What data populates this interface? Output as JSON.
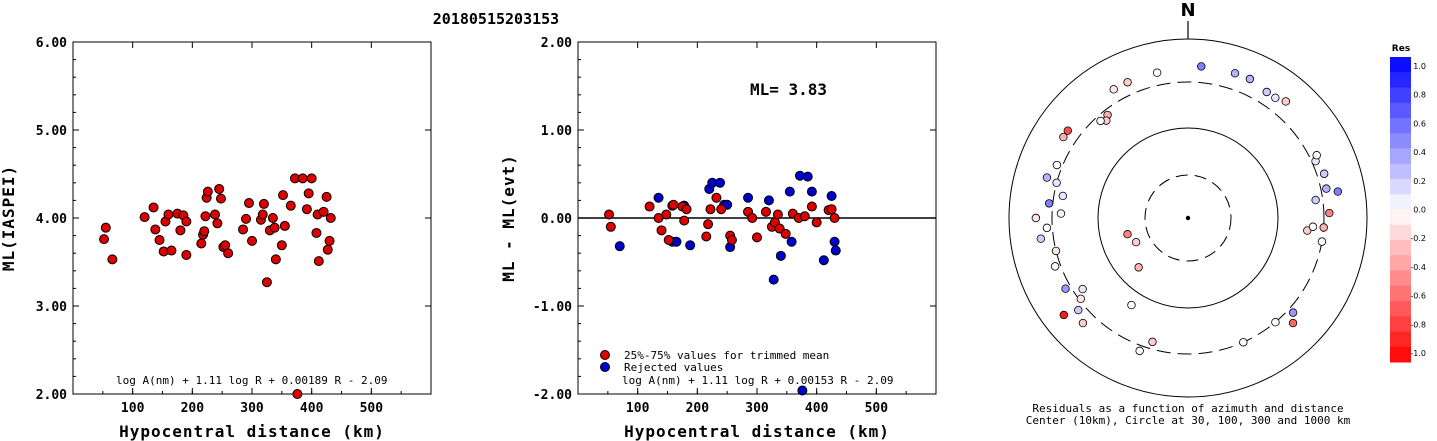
{
  "title": "20180515203153",
  "colors": {
    "trimmed": "#dd0000",
    "rejected": "#0000cc",
    "stroke": "#000000"
  },
  "chart_data": [
    {
      "type": "scatter",
      "name": "ml-iaspei-vs-distance",
      "xlabel": "Hypocentral distance (km)",
      "ylabel": "ML(IASPEI)",
      "xlim": [
        0,
        600
      ],
      "ylim": [
        2,
        6
      ],
      "xticks": [
        "100",
        "200",
        "300",
        "400",
        "500"
      ],
      "yticks": [
        "2.00",
        "3.00",
        "4.00",
        "5.00",
        "6.00"
      ],
      "formula": "log A(nm) + 1.11 log R + 0.00189 R - 2.09",
      "points": [
        [
          52,
          3.76
        ],
        [
          55,
          3.89
        ],
        [
          66,
          3.53
        ],
        [
          120,
          4.01
        ],
        [
          135,
          4.12
        ],
        [
          138,
          3.87
        ],
        [
          145,
          3.75
        ],
        [
          152,
          3.62
        ],
        [
          155,
          3.96
        ],
        [
          160,
          4.04
        ],
        [
          165,
          3.63
        ],
        [
          175,
          4.05
        ],
        [
          180,
          3.86
        ],
        [
          185,
          4.03
        ],
        [
          190,
          3.58
        ],
        [
          190,
          3.96
        ],
        [
          215,
          3.71
        ],
        [
          218,
          3.81
        ],
        [
          220,
          3.85
        ],
        [
          222,
          4.02
        ],
        [
          224,
          4.23
        ],
        [
          226,
          4.3
        ],
        [
          238,
          4.04
        ],
        [
          242,
          3.94
        ],
        [
          245,
          4.33
        ],
        [
          248,
          4.22
        ],
        [
          252,
          3.67
        ],
        [
          255,
          3.69
        ],
        [
          260,
          3.6
        ],
        [
          285,
          3.87
        ],
        [
          290,
          3.99
        ],
        [
          295,
          4.17
        ],
        [
          300,
          3.74
        ],
        [
          315,
          3.98
        ],
        [
          318,
          4.04
        ],
        [
          320,
          4.16
        ],
        [
          325,
          3.27
        ],
        [
          330,
          3.86
        ],
        [
          335,
          4.0
        ],
        [
          338,
          3.89
        ],
        [
          340,
          3.53
        ],
        [
          350,
          3.69
        ],
        [
          352,
          4.26
        ],
        [
          355,
          3.91
        ],
        [
          365,
          4.14
        ],
        [
          372,
          4.45
        ],
        [
          376,
          2.0
        ],
        [
          385,
          4.45
        ],
        [
          392,
          4.1
        ],
        [
          395,
          4.28
        ],
        [
          400,
          4.45
        ],
        [
          408,
          3.83
        ],
        [
          410,
          4.04
        ],
        [
          412,
          3.51
        ],
        [
          420,
          4.07
        ],
        [
          425,
          4.24
        ],
        [
          427,
          3.64
        ],
        [
          430,
          3.74
        ],
        [
          432,
          4.0
        ]
      ]
    },
    {
      "type": "scatter",
      "name": "ml-residual-vs-distance",
      "xlabel": "Hypocentral distance (km)",
      "ylabel": "ML - ML(evt)",
      "xlim": [
        0,
        600
      ],
      "ylim": [
        -2,
        2
      ],
      "xticks": [
        "100",
        "200",
        "300",
        "400",
        "500"
      ],
      "yticks": [
        "-2.00",
        "-1.00",
        "0.00",
        "1.00",
        "2.00"
      ],
      "ml_label": "ML= 3.83",
      "legend": [
        "25%-75% values for trimmed mean",
        "Rejected values"
      ],
      "formula": "log A(nm) + 1.11 log R + 0.00153 R - 2.09",
      "trimmed": [
        [
          52,
          0.04
        ],
        [
          55,
          -0.1
        ],
        [
          120,
          0.13
        ],
        [
          135,
          0.0
        ],
        [
          140,
          -0.14
        ],
        [
          148,
          0.04
        ],
        [
          152,
          -0.25
        ],
        [
          158,
          0.14
        ],
        [
          160,
          0.15
        ],
        [
          175,
          0.13
        ],
        [
          178,
          -0.03
        ],
        [
          182,
          0.1
        ],
        [
          215,
          -0.21
        ],
        [
          218,
          -0.07
        ],
        [
          222,
          0.1
        ],
        [
          232,
          0.23
        ],
        [
          240,
          0.1
        ],
        [
          255,
          -0.2
        ],
        [
          258,
          -0.25
        ],
        [
          285,
          0.07
        ],
        [
          292,
          0.0
        ],
        [
          300,
          -0.22
        ],
        [
          315,
          0.07
        ],
        [
          325,
          -0.1
        ],
        [
          330,
          -0.05
        ],
        [
          335,
          0.04
        ],
        [
          338,
          -0.12
        ],
        [
          348,
          -0.18
        ],
        [
          360,
          0.05
        ],
        [
          370,
          0.0
        ],
        [
          380,
          0.02
        ],
        [
          392,
          0.13
        ],
        [
          400,
          -0.05
        ],
        [
          420,
          0.09
        ],
        [
          425,
          0.1
        ],
        [
          430,
          0.0
        ]
      ],
      "rejected": [
        [
          70,
          -0.32
        ],
        [
          135,
          0.23
        ],
        [
          158,
          -0.27
        ],
        [
          165,
          -0.27
        ],
        [
          178,
          0.14
        ],
        [
          188,
          -0.31
        ],
        [
          220,
          0.33
        ],
        [
          225,
          0.4
        ],
        [
          238,
          0.4
        ],
        [
          245,
          0.15
        ],
        [
          250,
          0.15
        ],
        [
          255,
          -0.33
        ],
        [
          285,
          0.23
        ],
        [
          320,
          0.2
        ],
        [
          328,
          -0.7
        ],
        [
          340,
          -0.43
        ],
        [
          355,
          0.3
        ],
        [
          358,
          -0.27
        ],
        [
          372,
          0.48
        ],
        [
          376,
          -1.96
        ],
        [
          385,
          0.47
        ],
        [
          392,
          0.3
        ],
        [
          412,
          -0.48
        ],
        [
          425,
          0.25
        ],
        [
          430,
          -0.27
        ],
        [
          432,
          -0.37
        ]
      ]
    },
    {
      "type": "polar-scatter",
      "name": "residuals-azimuth-distance",
      "north_label": "N",
      "caption_line1": "Residuals as a function of azimuth and distance",
      "caption_line2": "Center (10km), Circle at 30, 100, 300 and 1000 km",
      "colorbar_title": "Res",
      "colorbar_ticks": [
        "1.0",
        "0.8",
        "0.6",
        "0.4",
        "0.2",
        "0.0",
        "-0.2",
        "-0.4",
        "-0.6",
        "-0.8",
        "-1.0"
      ],
      "rings_km": [
        30,
        100,
        300,
        1000
      ],
      "points": [
        {
          "az": 348,
          "r": 0.83,
          "res": 0.0
        },
        {
          "az": 5,
          "r": 0.85,
          "res": 0.5
        },
        {
          "az": 18,
          "r": 0.85,
          "res": 0.3
        },
        {
          "az": 24,
          "r": 0.85,
          "res": 0.3
        },
        {
          "az": 32,
          "r": 0.83,
          "res": 0.2
        },
        {
          "az": 36,
          "r": 0.83,
          "res": 0.1
        },
        {
          "az": 40,
          "r": 0.85,
          "res": -0.2
        },
        {
          "az": 336,
          "r": 0.83,
          "res": -0.2
        },
        {
          "az": 330,
          "r": 0.83,
          "res": -0.1
        },
        {
          "az": 322,
          "r": 0.73,
          "res": -0.3
        },
        {
          "az": 320,
          "r": 0.71,
          "res": -0.2
        },
        {
          "az": 318,
          "r": 0.73,
          "res": 0.0
        },
        {
          "az": 306,
          "r": 0.83,
          "res": -0.7
        },
        {
          "az": 303,
          "r": 0.83,
          "res": -0.3
        },
        {
          "az": 292,
          "r": 0.79,
          "res": 0.0
        },
        {
          "az": 286,
          "r": 0.82,
          "res": 0.3
        },
        {
          "az": 285,
          "r": 0.76,
          "res": 0.1
        },
        {
          "az": 280,
          "r": 0.71,
          "res": 0.1
        },
        {
          "az": 276,
          "r": 0.78,
          "res": 0.5
        },
        {
          "az": 272,
          "r": 0.71,
          "res": -0.05
        },
        {
          "az": 270,
          "r": 0.85,
          "res": -0.1
        },
        {
          "az": 266,
          "r": 0.79,
          "res": 0.0
        },
        {
          "az": 262,
          "r": 0.83,
          "res": 0.2
        },
        {
          "az": 256,
          "r": 0.76,
          "res": -0.1
        },
        {
          "az": 250,
          "r": 0.79,
          "res": 0.0
        },
        {
          "az": 240,
          "r": 0.79,
          "res": 0.4
        },
        {
          "az": 236,
          "r": 0.71,
          "res": 0.1
        },
        {
          "az": 233,
          "r": 0.75,
          "res": -0.1
        },
        {
          "az": 230,
          "r": 0.8,
          "res": 0.2
        },
        {
          "az": 232,
          "r": 0.88,
          "res": -0.9
        },
        {
          "az": 225,
          "r": 0.83,
          "res": -0.2
        },
        {
          "az": 255,
          "r": 0.35,
          "res": -0.5
        },
        {
          "az": 245,
          "r": 0.32,
          "res": -0.2
        },
        {
          "az": 225,
          "r": 0.39,
          "res": -0.3
        },
        {
          "az": 213,
          "r": 0.58,
          "res": 0.0
        },
        {
          "az": 200,
          "r": 0.79,
          "res": 0.0
        },
        {
          "az": 196,
          "r": 0.72,
          "res": -0.2
        },
        {
          "az": 156,
          "r": 0.76,
          "res": 0.0
        },
        {
          "az": 140,
          "r": 0.76,
          "res": 0.0
        },
        {
          "az": 135,
          "r": 0.83,
          "res": -0.6
        },
        {
          "az": 132,
          "r": 0.79,
          "res": 0.4
        },
        {
          "az": 100,
          "r": 0.76,
          "res": 0.0
        },
        {
          "az": 96,
          "r": 0.67,
          "res": -0.2
        },
        {
          "az": 94,
          "r": 0.76,
          "res": -0.3
        },
        {
          "az": 94,
          "r": 0.7,
          "res": 0.0
        },
        {
          "az": 88,
          "r": 0.79,
          "res": -0.5
        },
        {
          "az": 78,
          "r": 0.79,
          "res": 0.3
        },
        {
          "az": 72,
          "r": 0.8,
          "res": 0.2
        },
        {
          "az": 66,
          "r": 0.78,
          "res": 0.1
        },
        {
          "az": 64,
          "r": 0.8,
          "res": 0.0
        },
        {
          "az": 82,
          "r": 0.72,
          "res": 0.2
        },
        {
          "az": 80,
          "r": 0.85,
          "res": 0.5
        }
      ]
    }
  ]
}
